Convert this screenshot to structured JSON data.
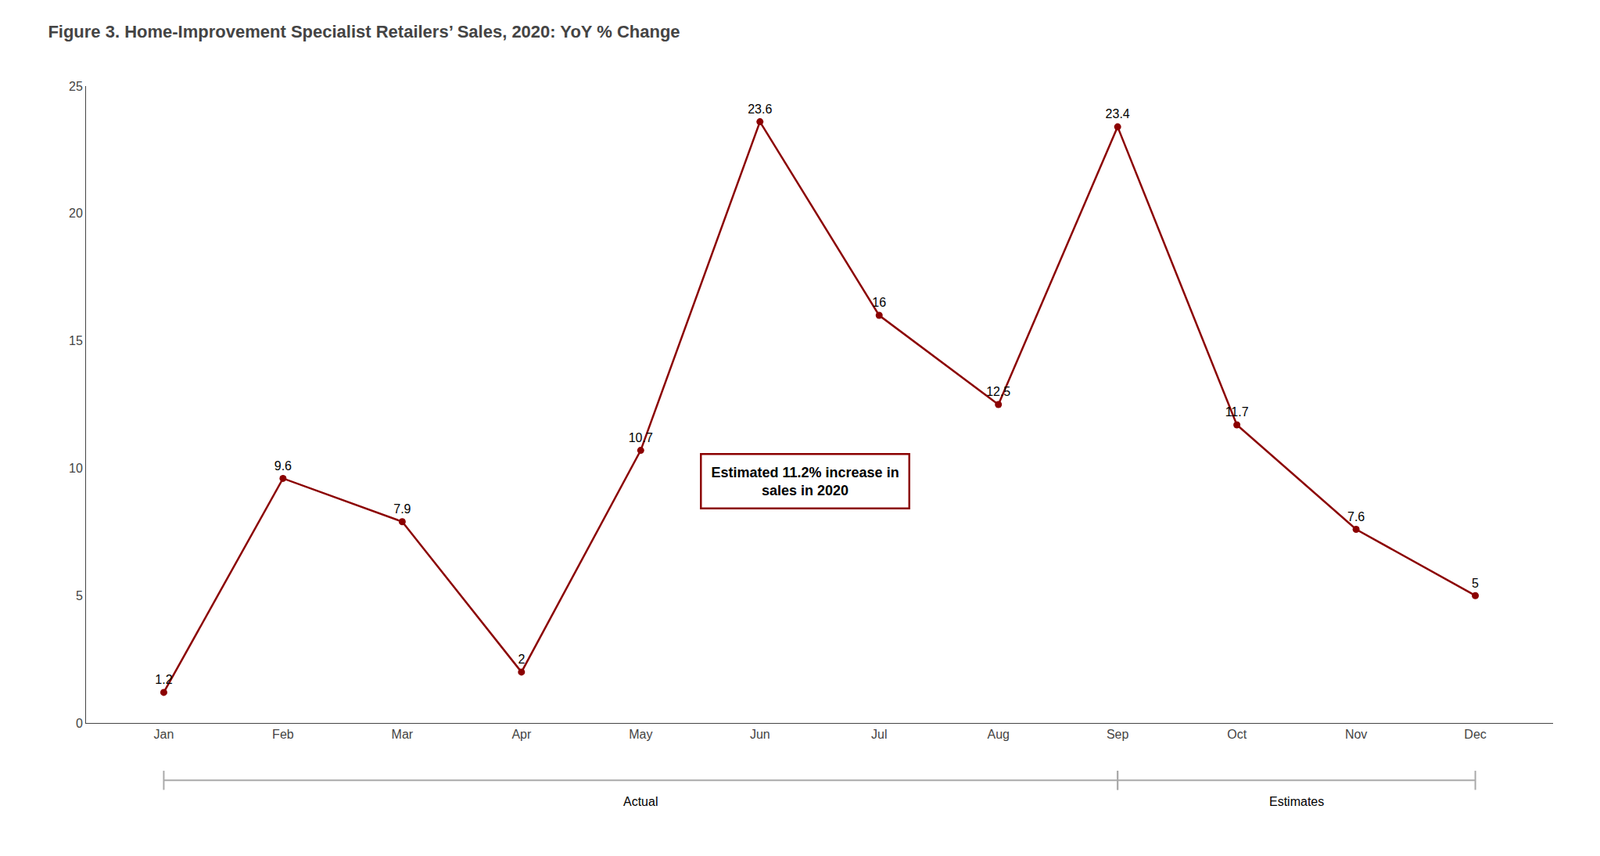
{
  "chart_data": {
    "type": "line",
    "title": "Figure 3. Home-Improvement Specialist Retailers’ Sales, 2020: YoY % Change",
    "categories": [
      "Jan",
      "Feb",
      "Mar",
      "Apr",
      "May",
      "Jun",
      "Jul",
      "Aug",
      "Sep",
      "Oct",
      "Nov",
      "Dec"
    ],
    "values": [
      1.2,
      9.6,
      7.9,
      2.0,
      10.7,
      23.6,
      16.0,
      12.5,
      23.4,
      11.7,
      7.6,
      5.0
    ],
    "color": "#8B0000",
    "marker": "circle",
    "ylim": [
      0,
      25
    ],
    "yticks": [
      0,
      5,
      10,
      15,
      20,
      25
    ],
    "grid": false,
    "data_labels": true,
    "annotations": [
      {
        "text": "Estimated 11.2% increase in\nsales in 2020",
        "color": "#8B0000"
      },
      {
        "text": "Actual",
        "from": "Jan",
        "to": "Sep",
        "color": "#aaaaaa"
      },
      {
        "text": "Estimates",
        "from": "Sep",
        "to": "Dec",
        "color": "#aaaaaa"
      }
    ]
  }
}
